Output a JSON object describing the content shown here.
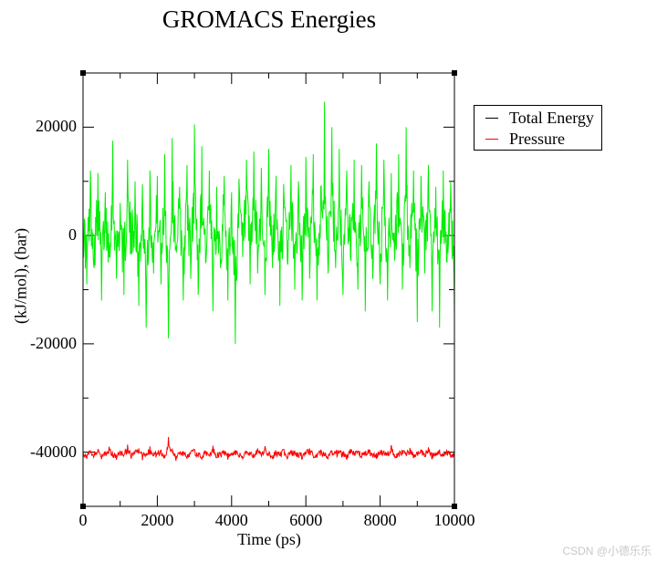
{
  "title": "GROMACS Energies",
  "watermark": "CSDN @小德乐乐",
  "axes": {
    "xlabel": "Time (ps)",
    "ylabel": "(kJ/mol), (bar)",
    "x_ticks": [
      "0",
      "2000",
      "4000",
      "6000",
      "8000",
      "10000"
    ],
    "y_ticks": [
      "20000",
      "0",
      "-20000",
      "-40000"
    ]
  },
  "legend": {
    "items": [
      {
        "label": "Total Energy",
        "color": "#000000"
      },
      {
        "label": "Pressure",
        "color": "#ff0000"
      }
    ]
  },
  "chart_data": {
    "type": "line",
    "title": "GROMACS Energies",
    "xlabel": "Time (ps)",
    "ylabel": "(kJ/mol), (bar)",
    "xlim": [
      0,
      10000
    ],
    "ylim": [
      -50000,
      30000
    ],
    "x_major_ticks": [
      0,
      2000,
      4000,
      6000,
      8000,
      10000
    ],
    "x_minor_step": 1000,
    "y_major_ticks": [
      -40000,
      -20000,
      0,
      20000
    ],
    "y_minor_step": 10000,
    "grid": false,
    "legend_position": "right, outside plot",
    "legend_entries": [
      "Total Energy",
      "Pressure"
    ],
    "x": [
      0,
      100,
      200,
      300,
      400,
      500,
      600,
      700,
      800,
      900,
      1000,
      1100,
      1200,
      1300,
      1400,
      1500,
      1600,
      1700,
      1800,
      1900,
      2000,
      2100,
      2200,
      2300,
      2400,
      2500,
      2600,
      2700,
      2800,
      2900,
      3000,
      3100,
      3200,
      3300,
      3400,
      3500,
      3600,
      3700,
      3800,
      3900,
      4000,
      4100,
      4200,
      4300,
      4400,
      4500,
      4600,
      4700,
      4800,
      4900,
      5000,
      5100,
      5200,
      5300,
      5400,
      5500,
      5600,
      5700,
      5800,
      5900,
      6000,
      6100,
      6200,
      6300,
      6400,
      6500,
      6600,
      6700,
      6800,
      6900,
      7000,
      7100,
      7200,
      7300,
      7400,
      7500,
      7600,
      7700,
      7800,
      7900,
      8000,
      8100,
      8200,
      8300,
      8400,
      8500,
      8600,
      8700,
      8800,
      8900,
      9000,
      9100,
      9200,
      9300,
      9400,
      9500,
      9600,
      9700,
      9800,
      9900,
      10000
    ],
    "series": [
      {
        "name": "Total Energy (plotted green)",
        "color": "#00ee00",
        "values": [
          4000,
          -9000,
          12000,
          -6000,
          11500,
          -12000,
          8000,
          -4000,
          17500,
          -8000,
          6000,
          -11000,
          14000,
          -3000,
          10000,
          -13000,
          9500,
          -17000,
          12000,
          -7000,
          11000,
          -9000,
          15000,
          -19000,
          18000,
          -2000,
          9000,
          -12000,
          13000,
          -8000,
          20500,
          -11000,
          16500,
          -5000,
          12000,
          -14000,
          9000,
          -6000,
          11000,
          -12000,
          8000,
          -20000,
          10500,
          -4000,
          14000,
          -9000,
          15500,
          -7000,
          12500,
          -11000,
          16000,
          -6000,
          11000,
          -13000,
          9500,
          -5000,
          13000,
          -10000,
          10000,
          -12000,
          14500,
          -8000,
          15000,
          -12000,
          9000,
          24700,
          -7000,
          20000,
          -6000,
          16000,
          -11000,
          12000,
          -4000,
          14000,
          -10000,
          13000,
          -14000,
          10000,
          -8000,
          17000,
          -9000,
          14000,
          -12000,
          11500,
          -3000,
          15000,
          -10000,
          20000,
          -6000,
          12000,
          -16000,
          11000,
          -7000,
          13000,
          -14000,
          9000,
          -17000,
          12000,
          -5000,
          10000,
          -15000
        ]
      },
      {
        "name": "Pressure",
        "color": "#ff0000",
        "values": [
          -40000,
          -41200,
          -39800,
          -40600,
          -39500,
          -41300,
          -40100,
          -39000,
          -40800,
          -41400,
          -39700,
          -40500,
          -38600,
          -41200,
          -40000,
          -39300,
          -41500,
          -40300,
          -38900,
          -40700,
          -40200,
          -39600,
          -41100,
          -37200,
          -39400,
          -41600,
          -40400,
          -39800,
          -41200,
          -40000,
          -39500,
          -40900,
          -41300,
          -39900,
          -40600,
          -38800,
          -41000,
          -40400,
          -39700,
          -41400,
          -40200,
          -39600,
          -40900,
          -41200,
          -39800,
          -40500,
          -41000,
          -39400,
          -40700,
          -38900,
          -40300,
          -41100,
          -39900,
          -40600,
          -39500,
          -41200,
          -40100,
          -39800,
          -40900,
          -41300,
          -40000,
          -39300,
          -40700,
          -41000,
          -39600,
          -40400,
          -41200,
          -39700,
          -40300,
          -39900,
          -40800,
          -41300,
          -39400,
          -40600,
          -39800,
          -41000,
          -40200,
          -39500,
          -40900,
          -41200,
          -40100,
          -39700,
          -40500,
          -38700,
          -41000,
          -40300,
          -39900,
          -40600,
          -39200,
          -41100,
          -40200,
          -39600,
          -40800,
          -39100,
          -41300,
          -40100,
          -39500,
          -40700,
          -39900,
          -41000,
          -40400
        ]
      }
    ]
  }
}
